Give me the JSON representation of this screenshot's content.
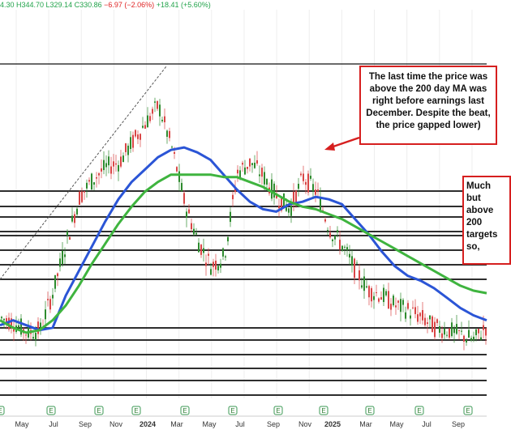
{
  "header": {
    "ohlc_text": "4.30  H344.70  L329.14  C330.86",
    "change_text": "−6.97 (−2.06%)",
    "change2_text": "+18.41 (+5.60%)"
  },
  "annotations": {
    "note1": "The last time the price was above the 200 day MA was right before earnings last December. Despite the beat, the price gapped lower)",
    "note2": "Much but above 200 targets so,"
  },
  "colors": {
    "ma100": "#2b55d6",
    "ma200": "#3fb43f",
    "up": "#2e8b2e",
    "down": "#d94545",
    "annotation_border": "#d61f1f",
    "earnings_marker": "#3c9a55"
  },
  "chart_data": {
    "type": "line",
    "title": "",
    "xlabel": "",
    "ylabel": "",
    "x_ticks": [
      "May",
      "Jul",
      "Sep",
      "Nov",
      "2024",
      "Mar",
      "May",
      "Jul",
      "Sep",
      "Nov",
      "2025",
      "Mar",
      "May",
      "Jul",
      "Sep"
    ],
    "earnings_markers": [
      "E",
      "E",
      "E",
      "E",
      "E",
      "E",
      "E",
      "E",
      "E",
      "E",
      "E"
    ],
    "horizontal_levels": 15,
    "series": [
      {
        "name": "",
        "color_key": "ma100",
        "style": "100-day moving average",
        "values": [
          6,
          8,
          6,
          4,
          5,
          18,
          28,
          38,
          48,
          57,
          64,
          69,
          74,
          77,
          78,
          76,
          73,
          67,
          61,
          56,
          53,
          52,
          55,
          56,
          58,
          57,
          55,
          49,
          43,
          36,
          30,
          26,
          24,
          21,
          17,
          13,
          10,
          8
        ]
      },
      {
        "name": "",
        "color_key": "ma200",
        "style": "200-day moving average",
        "values": [
          8,
          5,
          3,
          4,
          8,
          14,
          22,
          31,
          39,
          47,
          54,
          60,
          64,
          67,
          67,
          67,
          67,
          66,
          66,
          64,
          62,
          59,
          56,
          54,
          53,
          51,
          49,
          46,
          43,
          40,
          37,
          34,
          31,
          28,
          25,
          22,
          20,
          19
        ]
      },
      {
        "name": "",
        "color_key": "price",
        "style": "daily price bars",
        "values": [
          9,
          7,
          3,
          4,
          20,
          40,
          58,
          65,
          70,
          72,
          80,
          88,
          95,
          78,
          55,
          40,
          30,
          34,
          68,
          72,
          66,
          58,
          53,
          66,
          60,
          45,
          38,
          28,
          20,
          18,
          14,
          12,
          9,
          5,
          4,
          2,
          0,
          6
        ]
      }
    ]
  }
}
